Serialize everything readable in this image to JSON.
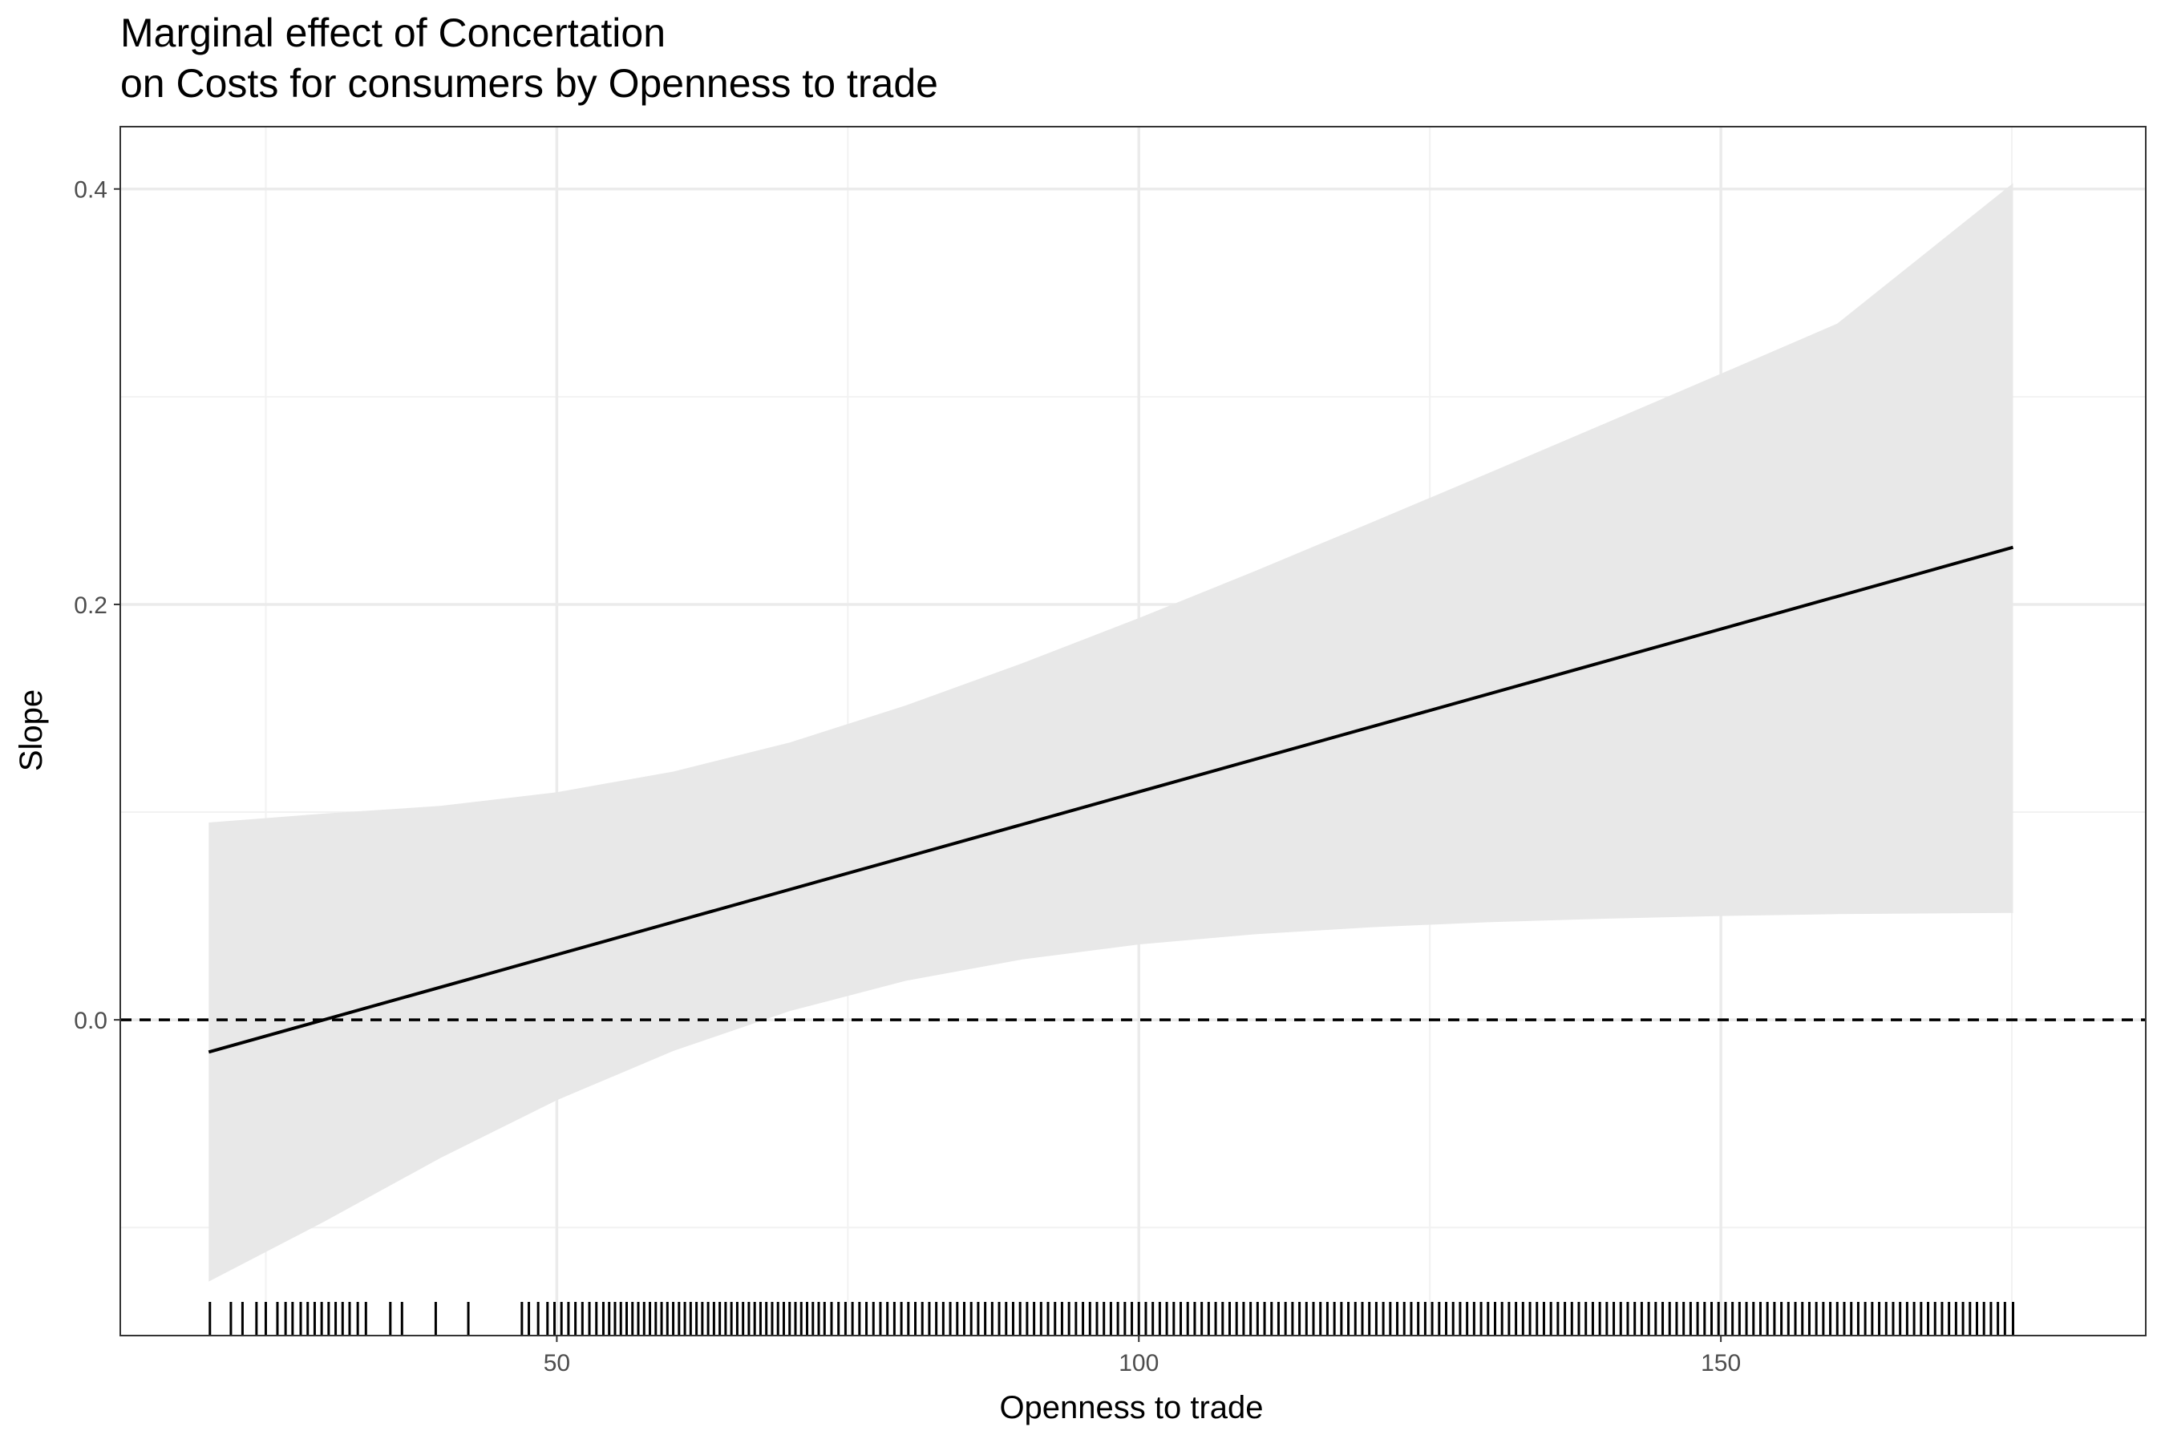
{
  "chart_data": {
    "type": "line",
    "title": "Marginal effect of Concertation",
    "subtitle": "on Costs for consumers by Openness to trade",
    "xlabel": "Openness to trade",
    "ylabel": "Slope",
    "xlim": [
      12.5,
      186.5
    ],
    "ylim": [
      -0.152,
      0.43
    ],
    "x_ticks": [
      50,
      100,
      150
    ],
    "x_tick_labels": [
      "50",
      "100",
      "150"
    ],
    "y_ticks": [
      0.0,
      0.2,
      0.4
    ],
    "y_tick_labels": [
      "0.0",
      "0.2",
      "0.4"
    ],
    "grid": true,
    "reference_line": {
      "y": 0.0,
      "style": "dashed"
    },
    "series": [
      {
        "type": "line",
        "x": [
          20.1,
          175.1
        ],
        "y": [
          -0.0155,
          0.2275
        ]
      },
      {
        "type": "ribbon",
        "x": [
          20.1,
          30,
          40,
          50,
          60,
          70,
          80,
          90,
          100,
          110,
          120,
          130,
          140,
          150,
          160,
          175.1
        ],
        "lower": [
          -0.126,
          -0.0972,
          -0.0665,
          -0.0387,
          -0.015,
          0.0042,
          0.0188,
          0.0291,
          0.0363,
          0.0412,
          0.0446,
          0.047,
          0.0487,
          0.05,
          0.0509,
          0.0515
        ],
        "upper": [
          0.095,
          0.0993,
          0.103,
          0.1096,
          0.1195,
          0.1335,
          0.1514,
          0.1717,
          0.1934,
          0.2161,
          0.2395,
          0.2631,
          0.287,
          0.311,
          0.3352,
          0.4028
        ]
      }
    ],
    "rug_x": [
      20.2,
      22,
      23,
      24.2,
      25,
      26,
      26.7,
      27.3,
      28,
      28.6,
      29.2,
      29.8,
      30.4,
      31,
      31.6,
      32.2,
      32.9,
      33.6,
      35.7,
      36.7,
      39.6,
      42.4,
      47,
      47.6,
      48.4,
      49.2,
      49.8,
      50.4,
      51,
      51.6,
      52.2,
      52.8,
      53.4,
      54,
      54.5,
      55,
      55.5,
      56,
      56.5,
      57,
      57.5,
      58,
      58.5,
      59,
      59.5,
      60,
      60.5,
      61,
      61.5,
      62,
      62.5,
      63,
      63.5,
      64,
      64.5,
      65,
      65.5,
      66,
      66.5,
      67,
      67.5,
      68,
      68.5,
      69,
      69.5,
      70,
      70.5,
      71,
      71.5,
      72,
      72.5,
      73,
      73.6,
      74.2,
      74.8,
      75.4,
      76,
      76.6,
      77.2,
      77.8,
      78.4,
      79,
      79.6,
      80.2,
      80.8,
      81.4,
      82,
      82.6,
      83.2,
      83.8,
      84.4,
      85,
      85.6,
      86.2,
      86.8,
      87.4,
      88,
      88.6,
      89.2,
      89.8,
      90.4,
      91,
      91.6,
      92.2,
      92.8,
      93.4,
      94,
      94.6,
      95.2,
      95.8,
      96.4,
      97,
      97.6,
      98.2,
      98.8,
      99.4,
      100,
      100.6,
      101.2,
      101.8,
      102.4,
      103,
      103.6,
      104.2,
      104.8,
      105.4,
      106,
      106.6,
      107.2,
      107.8,
      108.4,
      109,
      109.6,
      110.2,
      110.8,
      111.4,
      112,
      112.6,
      113.2,
      113.8,
      114.4,
      115,
      115.6,
      116.2,
      116.8,
      117.4,
      118,
      118.6,
      119.2,
      119.8,
      120.4,
      121,
      121.6,
      122.2,
      122.8,
      123.4,
      124,
      124.6,
      125.2,
      125.8,
      126.4,
      127,
      127.6,
      128.2,
      128.8,
      129.4,
      130,
      130.6,
      131.2,
      131.8,
      132.4,
      133,
      133.6,
      134.2,
      134.8,
      135.4,
      136,
      136.6,
      137.2,
      137.8,
      138.4,
      139,
      139.6,
      140.2,
      140.8,
      141.4,
      142,
      142.6,
      143.2,
      143.8,
      144.4,
      145,
      145.6,
      146.2,
      146.8,
      147.4,
      148,
      148.6,
      149.2,
      149.8,
      150.4,
      151,
      151.6,
      152.2,
      152.8,
      153.4,
      154,
      154.6,
      155.2,
      155.8,
      156.4,
      157,
      157.6,
      158.2,
      158.8,
      159.4,
      160,
      160.6,
      161.2,
      161.8,
      162.4,
      163,
      163.6,
      164.2,
      164.8,
      165.4,
      166,
      166.6,
      167.2,
      167.8,
      168.4,
      169,
      169.6,
      170.2,
      170.8,
      171.4,
      172,
      172.6,
      173.2,
      173.8,
      174.4,
      175.1
    ],
    "colors": {
      "line": "#000000",
      "ribbon": "#e8e8e8",
      "grid_major": "#ebebeb",
      "grid_minor": "#f2f2f2",
      "panel_border": "#333333",
      "tick_label": "#4d4d4d"
    }
  }
}
